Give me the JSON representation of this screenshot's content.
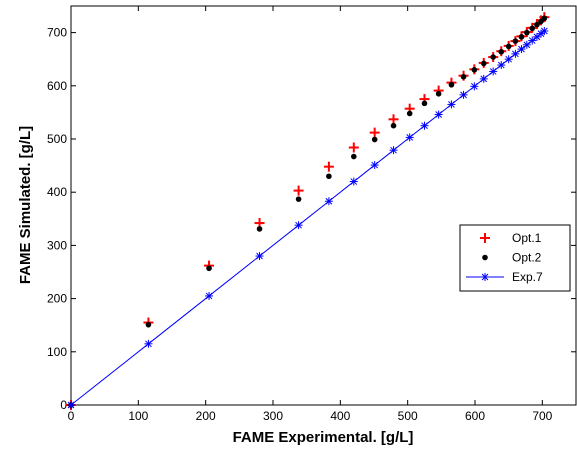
{
  "chart_data": {
    "type": "scatter",
    "title": "",
    "xlabel": "FAME Experimental. [g/L]",
    "ylabel": "FAME Simulated. [g/L]",
    "xlim": [
      0,
      750
    ],
    "ylim": [
      0,
      750
    ],
    "xticks": [
      0,
      100,
      200,
      300,
      400,
      500,
      600,
      700
    ],
    "yticks": [
      0,
      100,
      200,
      300,
      400,
      500,
      600,
      700
    ],
    "grid": false,
    "legend_position": "right",
    "series": [
      {
        "name": "Opt.1",
        "marker": "plus",
        "line": false,
        "color": "#ff0000",
        "x": [
          0,
          115,
          205,
          280,
          338,
          383,
          420,
          451,
          479,
          503,
          525,
          546,
          565,
          583,
          599,
          613,
          627,
          639,
          650,
          660,
          669,
          677,
          685,
          692,
          698,
          703
        ],
        "y": [
          0,
          155,
          262,
          342,
          403,
          448,
          484,
          512,
          537,
          557,
          575,
          591,
          606,
          619,
          631,
          643,
          654,
          665,
          675,
          684,
          693,
          701,
          709,
          716,
          723,
          729
        ]
      },
      {
        "name": "Opt.2",
        "marker": "dot",
        "line": false,
        "color": "#000000",
        "x": [
          0,
          115,
          205,
          280,
          338,
          383,
          420,
          451,
          479,
          503,
          525,
          546,
          565,
          583,
          599,
          613,
          627,
          639,
          650,
          660,
          669,
          677,
          685,
          692,
          698,
          703
        ],
        "y": [
          0,
          151,
          257,
          331,
          387,
          430,
          467,
          499,
          525,
          548,
          567,
          585,
          602,
          617,
          630,
          642,
          654,
          664,
          674,
          684,
          692,
          700,
          708,
          715,
          721,
          727
        ]
      },
      {
        "name": "Exp.7",
        "marker": "asterisk",
        "line": true,
        "color": "#0000ff",
        "x": [
          0,
          115,
          205,
          280,
          338,
          383,
          420,
          451,
          479,
          503,
          525,
          546,
          565,
          583,
          599,
          613,
          627,
          639,
          650,
          660,
          669,
          677,
          685,
          692,
          698,
          703
        ],
        "y": [
          0,
          115,
          205,
          280,
          338,
          383,
          420,
          451,
          479,
          503,
          525,
          546,
          565,
          583,
          599,
          613,
          627,
          639,
          650,
          660,
          669,
          677,
          685,
          692,
          698,
          703
        ]
      }
    ]
  }
}
